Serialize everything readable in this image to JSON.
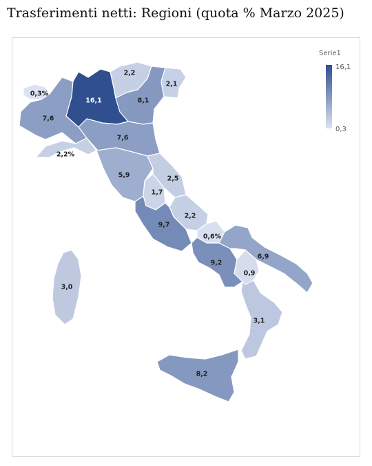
{
  "title": "Trasferimenti netti: Regioni (quota % Marzo 2025)",
  "legend": {
    "title": "Serie1",
    "max_label": "16,1",
    "min_label": "0,3",
    "min": 0.3,
    "max": 16.1,
    "color_low": "#dbe2f1",
    "color_high": "#2f4f8f"
  },
  "regions": [
    {
      "name": "Valle d'Aosta",
      "label": "0,3%",
      "value": 0.3
    },
    {
      "name": "Piemonte",
      "label": "7,6",
      "value": 7.6
    },
    {
      "name": "Lombardia",
      "label": "16,1",
      "value": 16.1
    },
    {
      "name": "Trentino-Alto Adige",
      "label": "2,2",
      "value": 2.2
    },
    {
      "name": "Veneto",
      "label": "8,1",
      "value": 8.1
    },
    {
      "name": "Friuli-Venezia Giulia",
      "label": "2,1",
      "value": 2.1
    },
    {
      "name": "Liguria",
      "label": "2,2%",
      "value": 2.2
    },
    {
      "name": "Emilia-Romagna",
      "label": "7,6",
      "value": 7.6
    },
    {
      "name": "Toscana",
      "label": "5,9",
      "value": 5.9
    },
    {
      "name": "Marche",
      "label": "2,5",
      "value": 2.5
    },
    {
      "name": "Umbria",
      "label": "1,7",
      "value": 1.7
    },
    {
      "name": "Abruzzo",
      "label": "2,2",
      "value": 2.2
    },
    {
      "name": "Lazio",
      "label": "9,7",
      "value": 9.7
    },
    {
      "name": "Molise",
      "label": "0,6%",
      "value": 0.6
    },
    {
      "name": "Campania",
      "label": "9,2",
      "value": 9.2
    },
    {
      "name": "Puglia",
      "label": "6,9",
      "value": 6.9
    },
    {
      "name": "Basilicata",
      "label": "0,9",
      "value": 0.9
    },
    {
      "name": "Calabria",
      "label": "3,1",
      "value": 3.1
    },
    {
      "name": "Sicilia",
      "label": "8,2",
      "value": 8.2
    },
    {
      "name": "Sardegna",
      "label": "3,0",
      "value": 3.0
    }
  ]
}
